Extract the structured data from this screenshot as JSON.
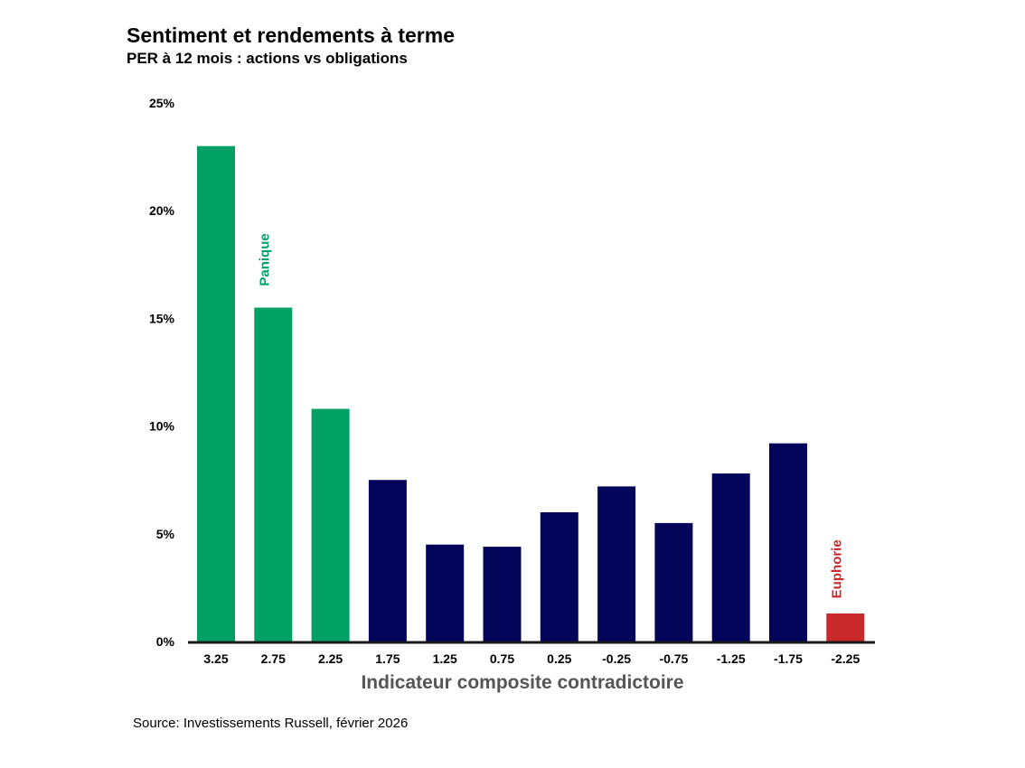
{
  "header": {
    "title": "Sentiment et rendements à terme",
    "subtitle": "PER à 12 mois : actions vs obligations"
  },
  "footer": {
    "source": "Source: Investissements Russell, février 2026"
  },
  "colors": {
    "panic": "#00a064",
    "neutral": "#03055b",
    "euphoria": "#c8282a",
    "axis": "#1a1a1a",
    "axis_title": "#555555"
  },
  "chart_data": {
    "type": "bar",
    "title": "Sentiment et rendements à terme",
    "subtitle": "PER à 12 mois : actions vs obligations",
    "xlabel": "Indicateur composite contradictoire",
    "ylabel": "",
    "ylim": [
      0,
      25
    ],
    "yticks": [
      "0%",
      "5%",
      "10%",
      "15%",
      "20%",
      "25%"
    ],
    "ytick_values": [
      0,
      5,
      10,
      15,
      20,
      25
    ],
    "grid": false,
    "categories": [
      "3.25",
      "2.75",
      "2.25",
      "1.75",
      "1.25",
      "0.75",
      "0.25",
      "-0.25",
      "-0.75",
      "-1.25",
      "-1.75",
      "-2.25"
    ],
    "values": [
      23.0,
      15.5,
      10.8,
      7.5,
      4.5,
      4.4,
      6.0,
      7.2,
      5.5,
      7.8,
      9.2,
      1.3
    ],
    "bar_groups": [
      "panic",
      "panic",
      "panic",
      "neutral",
      "neutral",
      "neutral",
      "neutral",
      "neutral",
      "neutral",
      "neutral",
      "neutral",
      "euphoria"
    ],
    "annotations": [
      {
        "text": "Panique",
        "category": "2.75",
        "group": "panic",
        "y_value": 16.5
      },
      {
        "text": "Euphorie",
        "category": "-2.25",
        "group": "euphoria",
        "y_value": 2.0
      }
    ]
  }
}
